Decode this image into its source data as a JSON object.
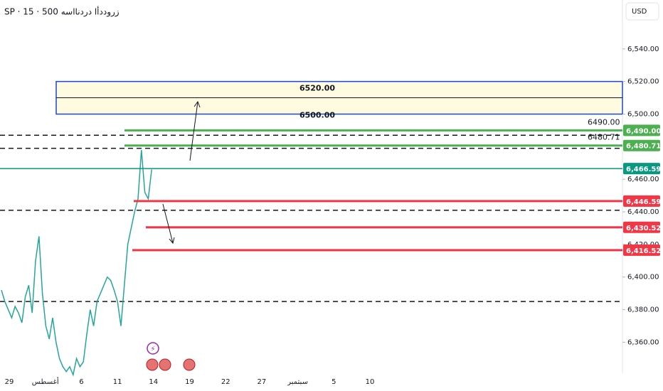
{
  "chart_data": {
    "type": "line",
    "title": "SP · 15 · 500 زروددأا دردنااسه",
    "currency": "USD",
    "ylim": [
      6341,
      6570
    ],
    "yticks": [
      {
        "value": 6360,
        "label": "6,360.00"
      },
      {
        "value": 6380,
        "label": "6,380.00"
      },
      {
        "value": 6400,
        "label": "6,400.00"
      },
      {
        "value": 6420,
        "label": "6,420.00"
      },
      {
        "value": 6440,
        "label": "6,440.00"
      },
      {
        "value": 6460,
        "label": "6,460.00"
      },
      {
        "value": 6500,
        "label": "6,500.00"
      },
      {
        "value": 6520,
        "label": "6,520.00"
      },
      {
        "value": 6540,
        "label": "6,540.00"
      }
    ],
    "x_labels": [
      "29",
      "أغسطس",
      "6",
      "11",
      "14",
      "19",
      "22",
      "27",
      "سبتمبر",
      "5",
      "10"
    ],
    "series": [
      {
        "color": "#26a69a",
        "values": [
          6392,
          6385,
          6380,
          6375,
          6382,
          6378,
          6372,
          6388,
          6395,
          6378,
          6410,
          6425,
          6390,
          6370,
          6362,
          6375,
          6360,
          6350,
          6345,
          6342,
          6345,
          6340,
          6350,
          6345,
          6348,
          6365,
          6380,
          6370,
          6385,
          6390,
          6395,
          6400,
          6398,
          6392,
          6385,
          6370,
          6395,
          6420,
          6430,
          6440,
          6448,
          6478,
          6452,
          6448,
          6466
        ]
      }
    ],
    "levels": [
      {
        "value": 6490,
        "label": "6,490.00",
        "color": "#4caf50"
      },
      {
        "value": 6480.71,
        "label": "6,480.71",
        "color": "#4caf50"
      },
      {
        "value": 6466.59,
        "label": "6,466.59",
        "color": "#089981"
      },
      {
        "value": 6446.59,
        "label": "6,446.59",
        "color": "#f23645"
      },
      {
        "value": 6430.52,
        "label": "6,430.52",
        "color": "#f23645"
      },
      {
        "value": 6416.52,
        "label": "6,416.52",
        "color": "#f23645"
      }
    ],
    "dashed_levels": [
      6487,
      6479,
      6441,
      6385
    ],
    "level_notes": [
      {
        "value": 6490,
        "label": "6490.00"
      },
      {
        "value": 6480.71,
        "label": "6480.71"
      }
    ],
    "zone": {
      "top": 6520,
      "bottom": 6500,
      "mid": 6510,
      "top_label": "6520.00",
      "bottom_label": "6500.00"
    }
  }
}
